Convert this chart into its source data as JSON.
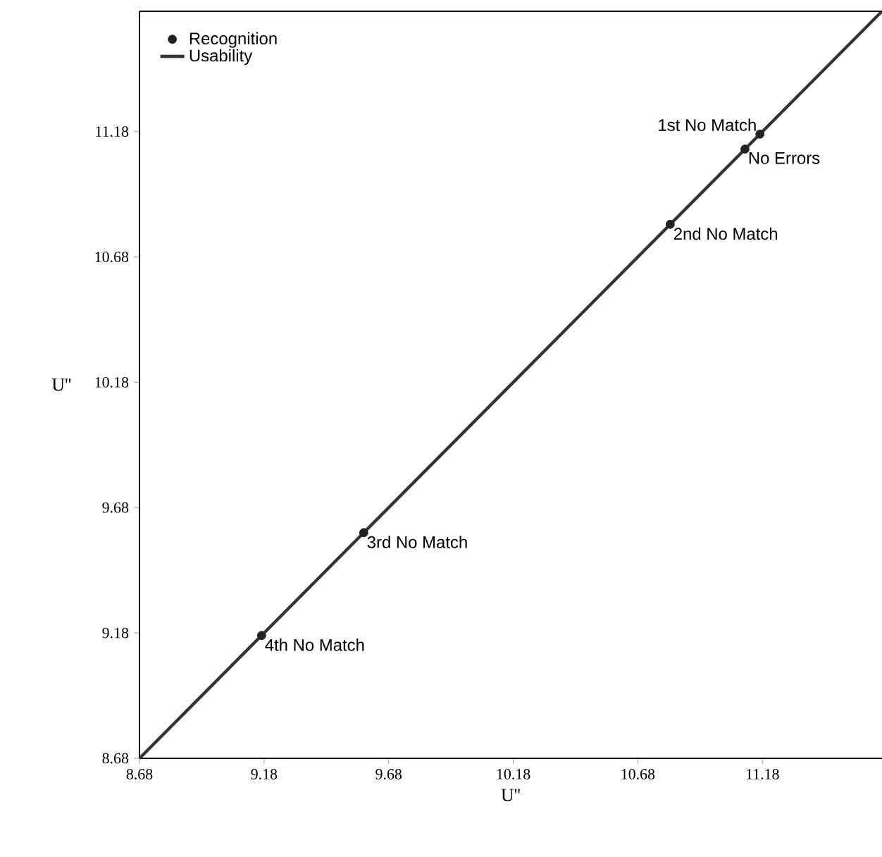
{
  "chart_data": {
    "type": "scatter",
    "xlabel": "U''",
    "ylabel": "U''",
    "xlim": [
      8.68,
      11.66
    ],
    "ylim": [
      8.68,
      11.66
    ],
    "xticks": [
      8.68,
      9.18,
      9.68,
      10.18,
      10.68,
      11.18
    ],
    "yticks": [
      8.68,
      9.18,
      9.68,
      10.18,
      10.68,
      11.18
    ],
    "series": [
      {
        "name": "Recognition",
        "color": "#222222",
        "marker": "circle",
        "x": [
          9.17,
          9.58,
          10.81,
          11.11,
          11.17
        ],
        "values": [
          9.17,
          9.58,
          10.81,
          11.11,
          11.17
        ]
      },
      {
        "name": "Usability",
        "type": "line",
        "color": "#333333",
        "marker": "none",
        "line_style": "solid",
        "x": [
          8.68,
          11.66
        ],
        "values": [
          8.68,
          11.66
        ]
      }
    ],
    "annotations": [
      {
        "text": "1st No Match",
        "x": 11.17,
        "y": 11.17
      },
      {
        "text": "No Errors",
        "x": 11.11,
        "y": 11.11
      },
      {
        "text": "2nd No Match",
        "x": 10.81,
        "y": 10.81
      },
      {
        "text": "3rd No Match",
        "x": 9.58,
        "y": 9.58
      },
      {
        "text": "4th No Match",
        "x": 9.17,
        "y": 9.17
      }
    ],
    "legend": "top left",
    "grid": false
  }
}
